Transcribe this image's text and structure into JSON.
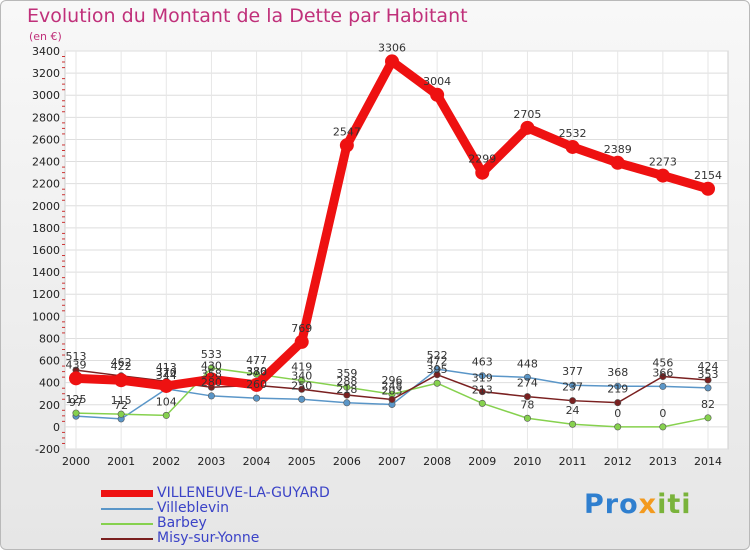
{
  "chart_data": {
    "type": "line",
    "title": "Evolution du Montant de la Dette par Habitant",
    "ylabel": "(en €)",
    "xlabel": "",
    "categories": [
      "2000",
      "2001",
      "2002",
      "2003",
      "2004",
      "2005",
      "2006",
      "2007",
      "2008",
      "2009",
      "2010",
      "2011",
      "2012",
      "2013",
      "2014"
    ],
    "ylim": [
      -200,
      3400
    ],
    "ytick_step": 200,
    "grid": true,
    "series": [
      {
        "name": "VILLENEUVE-LA-GUYARD",
        "color": "#ee1111",
        "values": [
          439,
          422,
          370,
          430,
          380,
          769,
          2547,
          3306,
          3004,
          2299,
          2705,
          2532,
          2389,
          2273,
          2154
        ],
        "labels": [
          "439",
          "422",
          "370",
          "430",
          "380",
          "769",
          "2547",
          "3306",
          "3004",
          "2299",
          "2705",
          "2532",
          "2389",
          "2273",
          "2154"
        ]
      },
      {
        "name": "Villeblevin",
        "color": "#5a96c8",
        "values": [
          97,
          72,
          344,
          280,
          260,
          250,
          218,
          203,
          522,
          463,
          448,
          377,
          368,
          366,
          353
        ],
        "labels": [
          "97",
          "72",
          "344",
          "280",
          "260",
          "250",
          "218",
          "203",
          "522",
          "463",
          "448",
          "377",
          "368",
          "366",
          "353"
        ]
      },
      {
        "name": "Barbey",
        "color": "#86d14e",
        "values": [
          125,
          115,
          104,
          533,
          477,
          419,
          359,
          296,
          395,
          213,
          78,
          24,
          0,
          0,
          82
        ],
        "labels": [
          "125",
          "115",
          "104",
          "533",
          "477",
          "419",
          "359",
          "296",
          "395",
          "213",
          "78",
          "24",
          "0",
          "0",
          "82"
        ]
      },
      {
        "name": "Misy-sur-Yonne",
        "color": "#7a2020",
        "values": [
          513,
          462,
          413,
          358,
          376,
          340,
          288,
          248,
          472,
          319,
          274,
          237,
          219,
          456,
          424
        ],
        "labels": [
          "513",
          "462",
          "413",
          "358",
          "376",
          "340",
          "288",
          "248",
          "472",
          "319",
          "274",
          "237",
          "219",
          "456",
          "424"
        ]
      }
    ]
  },
  "brand": {
    "part1": "Pro",
    "part2": "x",
    "part3": "iti"
  }
}
